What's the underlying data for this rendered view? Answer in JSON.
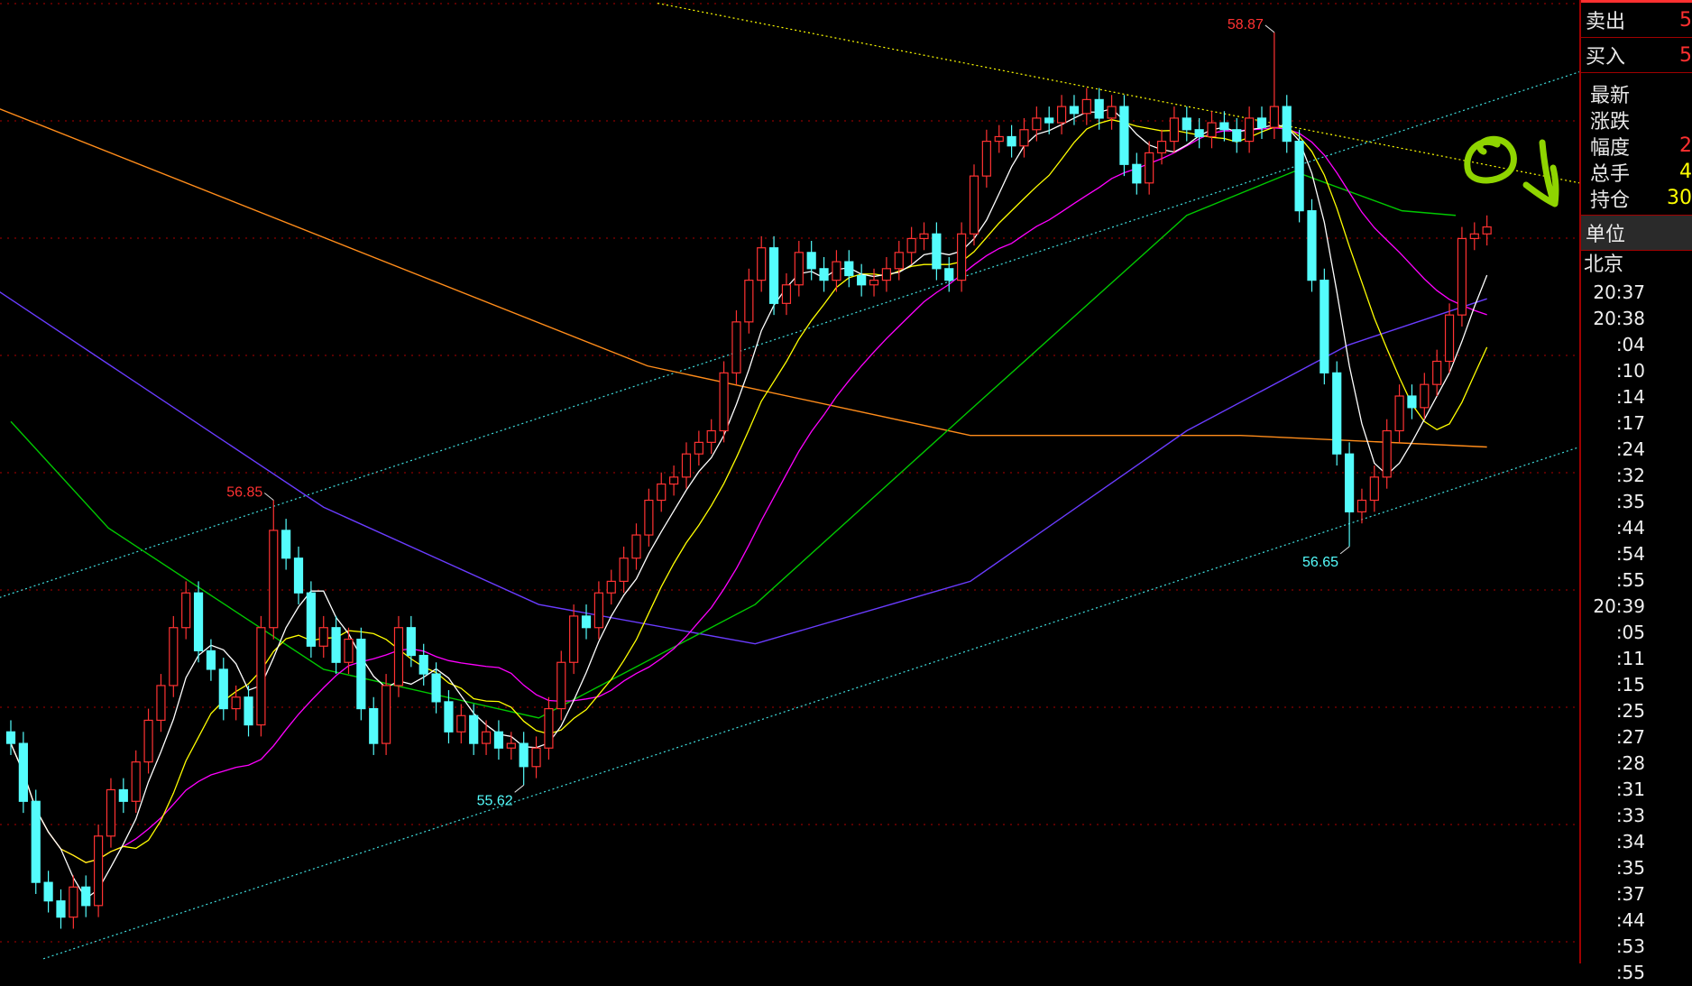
{
  "chart_data": {
    "type": "candlestick",
    "colors": {
      "up": "#ff3232",
      "down": "#54fcfc",
      "grid": "#8b0000",
      "ma5": "#ffffff",
      "ma10": "#ffff00",
      "ma20": "#ff00ff",
      "ma_green": "#00c800",
      "ma_purple": "#6a3cff",
      "ma_orange": "#ff8c1a",
      "trend_yellow": "#ffff00",
      "trend_cyan": "#40e0e0",
      "annotation": "#8fd400"
    },
    "ylim": [
      54.85,
      59.01
    ],
    "closes": [
      55.8,
      55.55,
      55.2,
      55.12,
      55.05,
      55.18,
      55.1,
      55.4,
      55.6,
      55.55,
      55.72,
      55.9,
      56.05,
      56.3,
      56.45,
      56.2,
      56.12,
      55.95,
      56.0,
      55.88,
      56.3,
      56.72,
      56.6,
      56.45,
      56.22,
      56.3,
      56.15,
      56.25,
      55.95,
      55.8,
      56.05,
      56.3,
      56.18,
      56.1,
      55.98,
      55.85,
      55.92,
      55.8,
      55.85,
      55.78,
      55.8,
      55.7,
      55.78,
      55.95,
      56.15,
      56.35,
      56.3,
      56.45,
      56.5,
      56.6,
      56.7,
      56.85,
      56.92,
      56.95,
      57.05,
      57.1,
      57.15,
      57.4,
      57.62,
      57.8,
      57.94,
      57.7,
      57.78,
      57.92,
      57.85,
      57.8,
      57.88,
      57.82,
      57.78,
      57.8,
      57.85,
      57.92,
      57.98,
      58.0,
      57.85,
      57.8,
      58.0,
      58.25,
      58.4,
      58.42,
      58.38,
      58.45,
      58.5,
      58.48,
      58.55,
      58.52,
      58.58,
      58.5,
      58.55,
      58.3,
      58.22,
      58.35,
      58.4,
      58.5,
      58.45,
      58.42,
      58.48,
      58.45,
      58.4,
      58.5,
      58.46,
      58.55,
      58.4,
      58.1,
      57.8,
      57.4,
      57.05,
      56.8,
      56.85,
      56.95,
      57.15,
      57.3,
      57.25,
      57.35,
      57.45,
      57.65,
      57.98,
      58.0,
      58.03
    ],
    "extremes": [
      {
        "index": 21,
        "price": 56.85,
        "label": "56.85",
        "kind": "high"
      },
      {
        "index": 41,
        "price": 55.62,
        "label": "55.62",
        "kind": "low"
      },
      {
        "index": 101,
        "price": 58.87,
        "label": "58.87",
        "kind": "high"
      },
      {
        "index": 107,
        "price": 56.65,
        "label": "56.65",
        "kind": "low"
      }
    ],
    "moving_averages_long": {
      "green": [
        [
          0,
          57.19
        ],
        [
          7.8,
          56.73
        ],
        [
          25,
          56.12
        ],
        [
          42.2,
          55.91
        ],
        [
          59.5,
          56.4
        ],
        [
          76.7,
          57.24
        ],
        [
          94,
          58.08
        ],
        [
          102.6,
          58.27
        ],
        [
          111.2,
          58.1
        ],
        [
          115.5,
          58.08
        ]
      ],
      "purple": [
        [
          -0.9,
          57.75
        ],
        [
          25,
          56.82
        ],
        [
          42.2,
          56.4
        ],
        [
          59.5,
          56.23
        ],
        [
          76.7,
          56.5
        ],
        [
          94,
          57.15
        ],
        [
          106.9,
          57.52
        ],
        [
          118,
          57.72
        ]
      ],
      "orange": [
        [
          -0.9,
          58.54
        ],
        [
          50.9,
          57.43
        ],
        [
          76.7,
          57.13
        ],
        [
          98.3,
          57.13
        ],
        [
          118,
          57.08
        ]
      ]
    },
    "trend_lines": [
      {
        "color": "trend_yellow",
        "from": [
          51.7,
          58.996
        ],
        "to": [
          125.4,
          58.22
        ]
      },
      {
        "color": "trend_cyan",
        "from": [
          -0.9,
          56.43
        ],
        "to": [
          125.4,
          58.7
        ]
      },
      {
        "color": "trend_cyan",
        "from": [
          2.6,
          54.87
        ],
        "to": [
          125.4,
          57.08
        ]
      }
    ]
  },
  "panel": {
    "sell": {
      "label": "卖出",
      "value": "5"
    },
    "buy": {
      "label": "买入",
      "value": "5"
    },
    "info": [
      {
        "label": "最新",
        "value": "",
        "color": "#ff3030"
      },
      {
        "label": "涨跌",
        "value": "",
        "color": "#ff3030"
      },
      {
        "label": "幅度",
        "value": "2",
        "color": "#ff3030"
      },
      {
        "label": "总手",
        "value": "4",
        "color": "#ffff00"
      },
      {
        "label": "持仓",
        "value": "30",
        "color": "#ffff00"
      }
    ],
    "unit_label": "单位",
    "city": "北京",
    "times": [
      "20:37",
      "20:38",
      ":04",
      ":10",
      ":14",
      ":17",
      ":24",
      ":32",
      ":35",
      ":44",
      ":54",
      ":55",
      "20:39",
      ":05",
      ":11",
      ":15",
      ":25",
      ":27",
      ":28",
      ":31",
      ":33",
      ":34",
      ":35",
      ":37",
      ":44",
      ":53",
      ":55"
    ]
  }
}
